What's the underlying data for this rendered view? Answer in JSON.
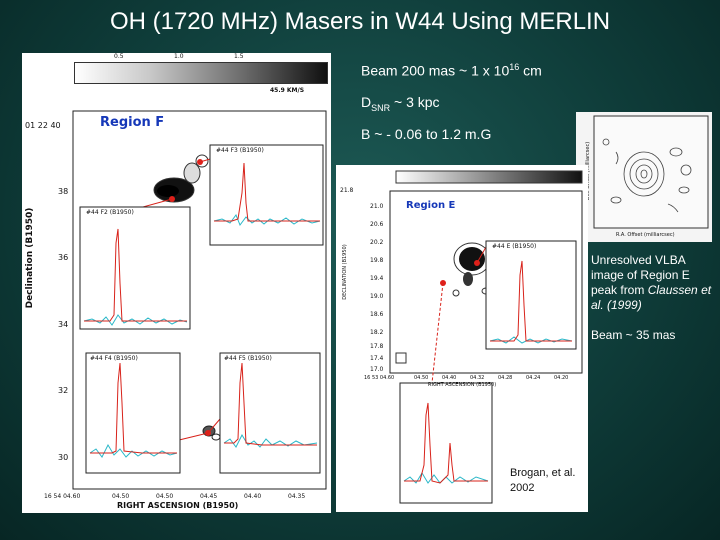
{
  "slide": {
    "title": "OH (1720 MHz) Masers in W44 Using MERLIN"
  },
  "notes": {
    "beam_line": {
      "prefix": "Beam 200 mas ~ 1 x 10",
      "sup": "16",
      "suffix": " cm"
    },
    "distance_line": {
      "prefix": "D",
      "sub": "SNR",
      "suffix": " ~ 3 kpc"
    },
    "field_line": "B ~ - 0.06 to 1.2 m.G",
    "vlba_caption_1": "Unresolved VLBA image of Region E peak from ",
    "vlba_caption_author": "Claussen et al. (1999)",
    "vlba_beam": "Beam ~ 35 mas"
  },
  "panel_f": {
    "colorbar_ticks": [
      "0.5",
      "1.0",
      "1.5"
    ],
    "colorbar_unit": "45.9 KM/S",
    "region_label": "Region F",
    "dec_axis_title": "Declination (B1950)",
    "dec_ticks": [
      "01 22 40",
      "38",
      "36",
      "34",
      "32",
      "30"
    ],
    "ra_ticks": [
      "16 54 04.60",
      "04.50",
      "04.50",
      "04.45",
      "04.40",
      "04.35"
    ],
    "ra_axis_title": "RIGHT ASCENSION (B1950)",
    "spectrum_labels": [
      "#44 F3 (B1950)",
      "#44 F2 (B1950)",
      "#44 F4 (B1950)",
      "#44 F5 (B1950)"
    ]
  },
  "panel_e": {
    "region_label": "Region E",
    "dec_ticks": [
      "21.8",
      "21.0",
      "20.6",
      "20.2",
      "19.8",
      "19.4",
      "19.0",
      "18.6",
      "18.2",
      "17.8",
      "17.4",
      "17.0"
    ],
    "ra_ticks": [
      "16 53 04.60",
      "04.50",
      "04.40",
      "04.32",
      "04.28",
      "04.24",
      "04.20"
    ],
    "ra_axis_title": "RIGHT ASCENSION (B1950)",
    "dec_axis_title": "DECLINATION (B1950)",
    "spectrum_label": "#44 E (B1950)",
    "credit_1": "Brogan, et al.",
    "credit_2": "2002"
  },
  "vlba": {
    "axis_y": "Dec Offset (milliarcsec)",
    "axis_x": "R.A. Offset (milliarcsec)"
  },
  "colors": {
    "background": "#0f3d3a",
    "text": "#ffffff",
    "spectrum_red": "#d8221a",
    "spectrum_cyan": "#2ab7c8",
    "marker_red": "#e0201a",
    "connector_blue": "#3a3fa8",
    "region_label_blue": "#1638b8"
  }
}
